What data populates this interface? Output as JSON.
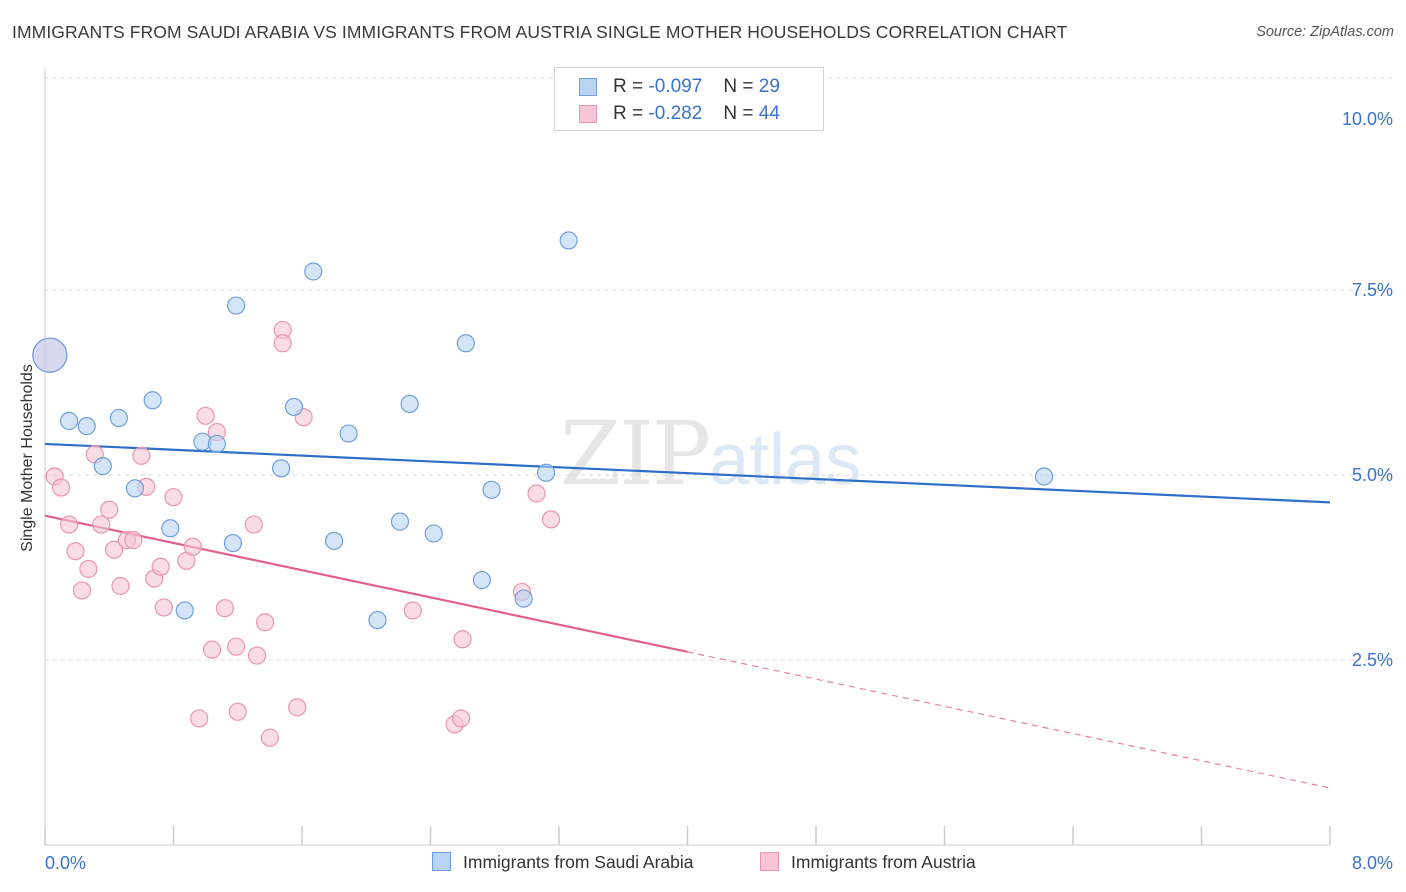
{
  "title": "IMMIGRANTS FROM SAUDI ARABIA VS IMMIGRANTS FROM AUSTRIA SINGLE MOTHER HOUSEHOLDS CORRELATION CHART",
  "source": "Source: ZipAtlas.com",
  "watermark": {
    "zip": "ZIP",
    "atlas": "atlas"
  },
  "legend": {
    "rows": [
      {
        "r_label": "R =",
        "r_value": "-0.097",
        "n_label": "N =",
        "n_value": "29"
      },
      {
        "r_label": "R =",
        "r_value": "-0.282",
        "n_label": "N =",
        "n_value": "44"
      }
    ]
  },
  "bottom_legend": {
    "series1": "Immigrants from Saudi Arabia",
    "series2": "Immigrants from Austria"
  },
  "colors": {
    "blue_fill": "#b8d3f3",
    "blue_stroke": "#6f9fdc",
    "blue_line": "#2f6fc8",
    "pink_fill": "#f7c5d4",
    "pink_stroke": "#e996b0",
    "pink_line": "#e0628a",
    "tick_text": "#3a73c9",
    "grid": "#d9d9d9"
  },
  "chart_data": {
    "type": "scatter",
    "title": "IMMIGRANTS FROM SAUDI ARABIA VS IMMIGRANTS FROM AUSTRIA SINGLE MOTHER HOUSEHOLDS CORRELATION CHART",
    "xlabel": "",
    "ylabel": "Single Mother Households",
    "xlim": [
      0,
      8
    ],
    "ylim": [
      0,
      10.5
    ],
    "x_tick_labels": [
      "0.0%",
      "8.0%"
    ],
    "y_ticks": [
      2.5,
      5.0,
      7.5,
      10.0
    ],
    "y_tick_labels": [
      "2.5%",
      "5.0%",
      "7.5%",
      "10.0%"
    ],
    "grid": true,
    "legend_position": "top-center",
    "series": [
      {
        "name": "Immigrants from Saudi Arabia",
        "r": -0.097,
        "n": 29,
        "trend": {
          "x": [
            0,
            8
          ],
          "y": [
            5.42,
            4.63
          ],
          "dashed_from_x": null
        },
        "points": [
          {
            "x": 0.03,
            "y": 6.62,
            "big": true
          },
          {
            "x": 0.15,
            "y": 5.73
          },
          {
            "x": 0.26,
            "y": 5.66
          },
          {
            "x": 0.36,
            "y": 5.12
          },
          {
            "x": 0.46,
            "y": 5.77
          },
          {
            "x": 0.56,
            "y": 4.82
          },
          {
            "x": 0.67,
            "y": 6.01
          },
          {
            "x": 0.78,
            "y": 4.28
          },
          {
            "x": 0.87,
            "y": 3.17
          },
          {
            "x": 0.98,
            "y": 5.45
          },
          {
            "x": 1.07,
            "y": 5.42
          },
          {
            "x": 1.17,
            "y": 4.08
          },
          {
            "x": 1.19,
            "y": 7.29
          },
          {
            "x": 1.47,
            "y": 5.09
          },
          {
            "x": 1.55,
            "y": 5.92
          },
          {
            "x": 1.67,
            "y": 7.75
          },
          {
            "x": 1.8,
            "y": 4.11
          },
          {
            "x": 1.89,
            "y": 5.56
          },
          {
            "x": 2.07,
            "y": 3.04
          },
          {
            "x": 2.21,
            "y": 4.37
          },
          {
            "x": 2.27,
            "y": 5.96
          },
          {
            "x": 2.42,
            "y": 4.21
          },
          {
            "x": 2.62,
            "y": 6.78
          },
          {
            "x": 2.72,
            "y": 3.58
          },
          {
            "x": 2.78,
            "y": 4.8
          },
          {
            "x": 2.98,
            "y": 3.33
          },
          {
            "x": 3.12,
            "y": 5.03
          },
          {
            "x": 3.26,
            "y": 8.17
          },
          {
            "x": 6.22,
            "y": 4.98
          }
        ]
      },
      {
        "name": "Immigrants from Austria",
        "r": -0.282,
        "n": 44,
        "trend": {
          "x": [
            0,
            8
          ],
          "y": [
            4.45,
            0.77
          ],
          "dashed_from_x": 4.0
        },
        "points": [
          {
            "x": 0.03,
            "y": 6.62,
            "big": true
          },
          {
            "x": 0.06,
            "y": 4.98
          },
          {
            "x": 0.1,
            "y": 4.83
          },
          {
            "x": 0.15,
            "y": 4.33
          },
          {
            "x": 0.19,
            "y": 3.97
          },
          {
            "x": 0.23,
            "y": 3.44
          },
          {
            "x": 0.27,
            "y": 3.73
          },
          {
            "x": 0.31,
            "y": 5.28
          },
          {
            "x": 0.35,
            "y": 4.33
          },
          {
            "x": 0.4,
            "y": 4.53
          },
          {
            "x": 0.43,
            "y": 3.99
          },
          {
            "x": 0.47,
            "y": 3.5
          },
          {
            "x": 0.51,
            "y": 4.12
          },
          {
            "x": 0.55,
            "y": 4.12
          },
          {
            "x": 0.6,
            "y": 5.26
          },
          {
            "x": 0.63,
            "y": 4.84
          },
          {
            "x": 0.68,
            "y": 3.6
          },
          {
            "x": 0.72,
            "y": 3.76
          },
          {
            "x": 0.74,
            "y": 3.21
          },
          {
            "x": 0.8,
            "y": 4.7
          },
          {
            "x": 0.88,
            "y": 3.84
          },
          {
            "x": 0.92,
            "y": 4.03
          },
          {
            "x": 0.96,
            "y": 1.71
          },
          {
            "x": 1.0,
            "y": 5.8
          },
          {
            "x": 1.04,
            "y": 2.64
          },
          {
            "x": 1.07,
            "y": 5.58
          },
          {
            "x": 1.12,
            "y": 3.2
          },
          {
            "x": 1.19,
            "y": 2.68
          },
          {
            "x": 1.2,
            "y": 1.8
          },
          {
            "x": 1.3,
            "y": 4.33
          },
          {
            "x": 1.32,
            "y": 2.56
          },
          {
            "x": 1.37,
            "y": 3.01
          },
          {
            "x": 1.4,
            "y": 1.45
          },
          {
            "x": 1.48,
            "y": 6.96
          },
          {
            "x": 1.48,
            "y": 6.78
          },
          {
            "x": 1.57,
            "y": 1.86
          },
          {
            "x": 1.61,
            "y": 5.78
          },
          {
            "x": 2.29,
            "y": 3.17
          },
          {
            "x": 2.55,
            "y": 1.63
          },
          {
            "x": 2.59,
            "y": 1.71
          },
          {
            "x": 2.6,
            "y": 2.78
          },
          {
            "x": 2.97,
            "y": 3.42
          },
          {
            "x": 3.06,
            "y": 4.75
          },
          {
            "x": 3.15,
            "y": 4.4
          }
        ]
      }
    ]
  }
}
